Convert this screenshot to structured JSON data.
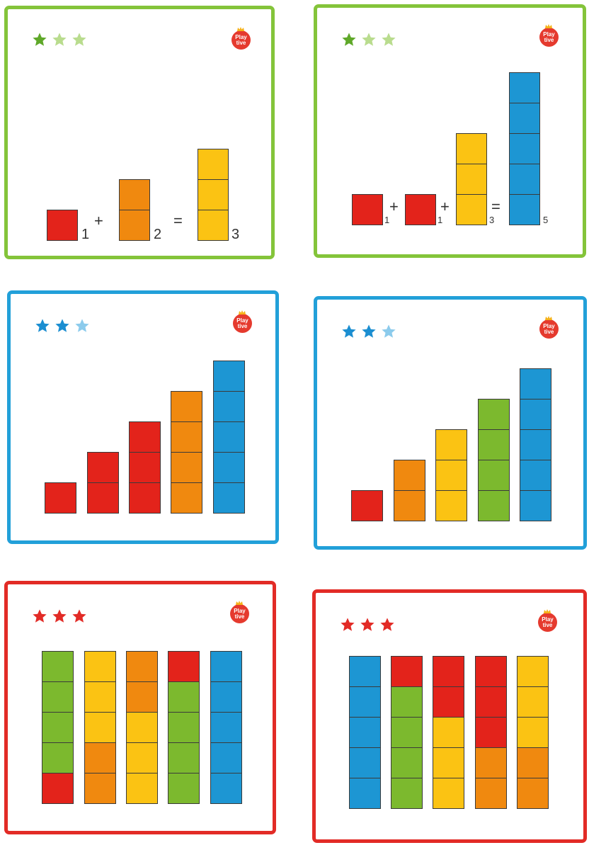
{
  "colors": {
    "red": "#e3231b",
    "orange": "#f0890f",
    "yellow": "#fbc313",
    "green": "#7cb92e",
    "blue": "#1d96d3",
    "green_frame": "#84c43a",
    "blue_frame": "#22a0d9",
    "red_frame": "#e22b26",
    "logo": "#e53a2e"
  },
  "logo": {
    "line1": "Play",
    "line2": "tive"
  },
  "cards": [
    {
      "frame": "green_frame",
      "star_colors": [
        "#5fa829",
        "#b9dc8e",
        "#b9dc8e"
      ],
      "columns": [
        [
          "red"
        ],
        [
          "orange",
          "orange"
        ],
        [
          "yellow",
          "yellow",
          "yellow"
        ]
      ],
      "numbers": [
        "1",
        "2",
        "3"
      ],
      "operators": [
        "+",
        "="
      ]
    },
    {
      "frame": "green_frame",
      "star_colors": [
        "#5fa829",
        "#b9dc8e",
        "#b9dc8e"
      ],
      "columns": [
        [
          "red"
        ],
        [
          "red"
        ],
        [
          "yellow",
          "yellow",
          "yellow"
        ],
        [
          "blue",
          "blue",
          "blue",
          "blue",
          "blue"
        ]
      ],
      "numbers": [
        "1",
        "1",
        "3",
        "5"
      ],
      "operators": [
        "+",
        "+",
        "="
      ]
    },
    {
      "frame": "blue_frame",
      "star_colors": [
        "#1b8ed1",
        "#1b8ed1",
        "#8ccbec"
      ],
      "columns": [
        [
          "red"
        ],
        [
          "red",
          "red"
        ],
        [
          "red",
          "red",
          "red"
        ],
        [
          "orange",
          "orange",
          "orange",
          "orange"
        ],
        [
          "blue",
          "blue",
          "blue",
          "blue",
          "blue"
        ]
      ]
    },
    {
      "frame": "blue_frame",
      "star_colors": [
        "#1b8ed1",
        "#1b8ed1",
        "#8ccbec"
      ],
      "columns": [
        [
          "red"
        ],
        [
          "orange",
          "orange"
        ],
        [
          "yellow",
          "yellow",
          "yellow"
        ],
        [
          "green",
          "green",
          "green",
          "green"
        ],
        [
          "blue",
          "blue",
          "blue",
          "blue",
          "blue"
        ]
      ]
    },
    {
      "frame": "red_frame",
      "star_colors": [
        "#e22b26",
        "#e22b26",
        "#e22b26"
      ],
      "columns": [
        [
          "red",
          "green",
          "green",
          "green",
          "green"
        ],
        [
          "orange",
          "orange",
          "yellow",
          "yellow",
          "yellow"
        ],
        [
          "yellow",
          "yellow",
          "yellow",
          "orange",
          "orange"
        ],
        [
          "green",
          "green",
          "green",
          "green",
          "red"
        ],
        [
          "blue",
          "blue",
          "blue",
          "blue",
          "blue"
        ]
      ]
    },
    {
      "frame": "red_frame",
      "star_colors": [
        "#e22b26",
        "#e22b26",
        "#e22b26"
      ],
      "columns": [
        [
          "blue",
          "blue",
          "blue",
          "blue",
          "blue"
        ],
        [
          "green",
          "green",
          "green",
          "green",
          "red"
        ],
        [
          "yellow",
          "yellow",
          "yellow",
          "red",
          "red"
        ],
        [
          "orange",
          "orange",
          "red",
          "red",
          "red"
        ],
        [
          "orange",
          "orange",
          "yellow",
          "yellow",
          "yellow"
        ]
      ]
    }
  ]
}
